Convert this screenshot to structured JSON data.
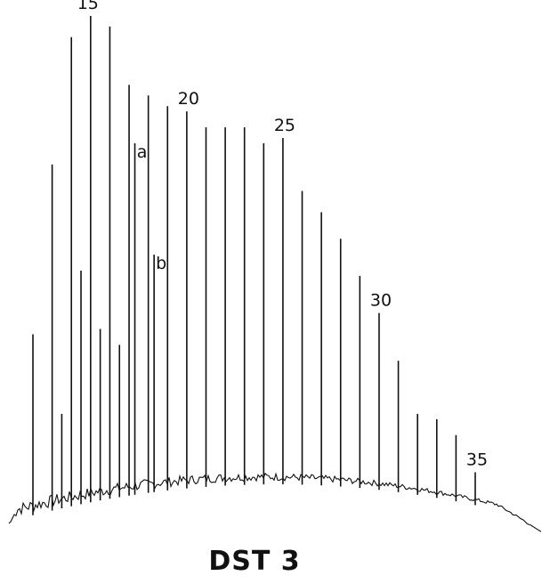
{
  "chart_data": {
    "type": "line",
    "title": "DST 3",
    "xlabel": "",
    "ylabel": "",
    "grid": false,
    "peak_labels": [
      "15",
      "20",
      "25",
      "30",
      "35",
      "a",
      "b"
    ],
    "peaks": [
      {
        "carbon": 12,
        "height": 0.37,
        "label": ""
      },
      {
        "carbon": 13,
        "height": 0.69,
        "label": ""
      },
      {
        "carbon": 14,
        "height": 0.93,
        "label": ""
      },
      {
        "carbon": 15,
        "height": 0.97,
        "label": "15"
      },
      {
        "carbon": 16,
        "height": 0.95,
        "label": ""
      },
      {
        "carbon": 17,
        "height": 0.84,
        "label": ""
      },
      {
        "carbon": 18,
        "height": 0.82,
        "label": ""
      },
      {
        "carbon": 19,
        "height": 0.8,
        "label": ""
      },
      {
        "carbon": 20,
        "height": 0.79,
        "label": "20"
      },
      {
        "carbon": 21,
        "height": 0.76,
        "label": ""
      },
      {
        "carbon": 22,
        "height": 0.76,
        "label": ""
      },
      {
        "carbon": 23,
        "height": 0.76,
        "label": ""
      },
      {
        "carbon": 24,
        "height": 0.73,
        "label": ""
      },
      {
        "carbon": 25,
        "height": 0.74,
        "label": "25"
      },
      {
        "carbon": 26,
        "height": 0.64,
        "label": ""
      },
      {
        "carbon": 27,
        "height": 0.6,
        "label": ""
      },
      {
        "carbon": 28,
        "height": 0.55,
        "label": ""
      },
      {
        "carbon": 29,
        "height": 0.48,
        "label": ""
      },
      {
        "carbon": 30,
        "height": 0.41,
        "label": "30"
      },
      {
        "carbon": 31,
        "height": 0.32,
        "label": ""
      },
      {
        "carbon": 32,
        "height": 0.22,
        "label": ""
      },
      {
        "carbon": 33,
        "height": 0.21,
        "label": ""
      },
      {
        "carbon": 34,
        "height": 0.18,
        "label": ""
      },
      {
        "carbon": 35,
        "height": 0.11,
        "label": "35"
      }
    ],
    "minor_peaks": [
      {
        "carbon": 13.5,
        "height": 0.22
      },
      {
        "carbon": 14.5,
        "height": 0.49
      },
      {
        "carbon": 15.5,
        "height": 0.38
      },
      {
        "carbon": 16.5,
        "height": 0.35
      },
      {
        "carbon": 17.3,
        "height": 0.73,
        "label": "a"
      },
      {
        "carbon": 18.3,
        "height": 0.52,
        "label": "b"
      }
    ]
  }
}
